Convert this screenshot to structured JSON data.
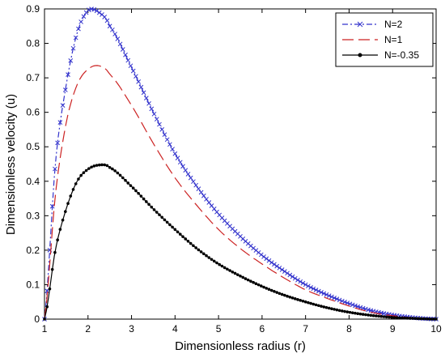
{
  "chart_data": {
    "type": "line",
    "xlabel": "Dimensionless radius (r)",
    "ylabel": "Dimensionless velocity (u)",
    "xlim": [
      1,
      10
    ],
    "ylim": [
      0,
      0.9
    ],
    "xticks": [
      1,
      2,
      3,
      4,
      5,
      6,
      7,
      8,
      9,
      10
    ],
    "yticks": [
      0,
      0.1,
      0.2,
      0.3,
      0.4,
      0.5,
      0.6,
      0.7,
      0.8,
      0.9
    ],
    "xtick_labels": [
      "1",
      "2",
      "3",
      "4",
      "5",
      "6",
      "7",
      "8",
      "9",
      "10"
    ],
    "ytick_labels": [
      "0",
      "0.1",
      "0.2",
      "0.3",
      "0.4",
      "0.5",
      "0.6",
      "0.7",
      "0.8",
      "0.9"
    ],
    "grid": false,
    "legend_position": "top-right",
    "x": [
      1.0,
      1.25,
      1.5,
      1.75,
      2.0,
      2.25,
      2.5,
      3.0,
      3.5,
      4.0,
      4.5,
      5.0,
      5.5,
      6.0,
      6.5,
      7.0,
      7.5,
      8.0,
      8.5,
      9.0,
      9.5,
      10.0
    ],
    "series": [
      {
        "name": "N=2",
        "color": "#3333cc",
        "line_style": "dashdot",
        "marker": "x",
        "values": [
          0.0,
          0.45,
          0.68,
          0.83,
          0.895,
          0.89,
          0.85,
          0.73,
          0.6,
          0.48,
          0.385,
          0.305,
          0.24,
          0.185,
          0.14,
          0.1,
          0.07,
          0.045,
          0.025,
          0.012,
          0.004,
          0.0
        ]
      },
      {
        "name": "N=1",
        "color": "#cc2222",
        "line_style": "dashed",
        "marker": "none",
        "values": [
          0.0,
          0.36,
          0.57,
          0.68,
          0.725,
          0.735,
          0.71,
          0.62,
          0.51,
          0.41,
          0.33,
          0.26,
          0.205,
          0.16,
          0.12,
          0.085,
          0.06,
          0.038,
          0.02,
          0.01,
          0.003,
          0.0
        ]
      },
      {
        "name": "N=-0.35",
        "color": "#000000",
        "line_style": "solid",
        "marker": "dot",
        "values": [
          0.0,
          0.2,
          0.32,
          0.4,
          0.435,
          0.447,
          0.44,
          0.385,
          0.32,
          0.26,
          0.205,
          0.16,
          0.125,
          0.095,
          0.07,
          0.05,
          0.033,
          0.02,
          0.011,
          0.005,
          0.002,
          0.0
        ]
      }
    ]
  }
}
